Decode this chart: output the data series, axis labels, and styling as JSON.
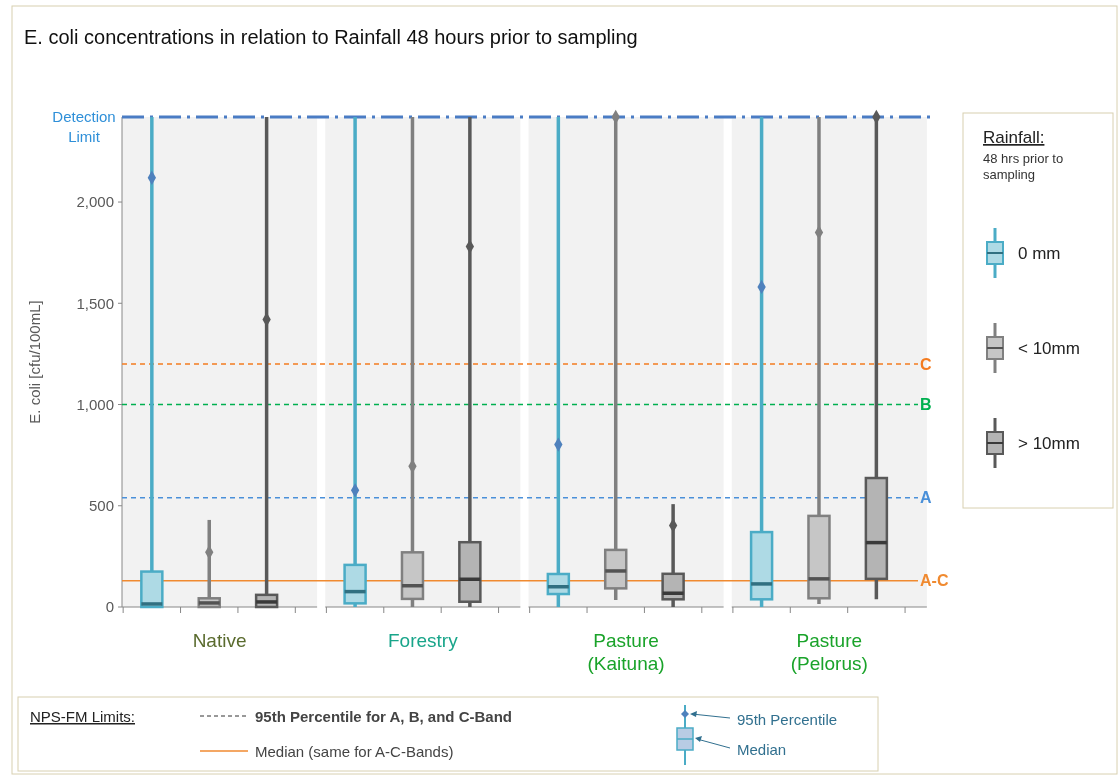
{
  "chart_data": {
    "type": "box",
    "title": "E. coli concentrations in relation to Rainfall 48 hours prior to sampling",
    "ylabel": "E. coli [cfu/100mL]",
    "legend_title": "Rainfall:",
    "legend": "right",
    "categories": [
      "Native",
      "Forestry",
      "Pasture (Kaituna)",
      "Pasture (Pelorus)"
    ],
    "ylim": [
      0,
      2420
    ],
    "yticks": [
      0,
      500,
      {
        "value": 1000,
        "label": "1,000"
      },
      {
        "value": 1500,
        "label": "1,500"
      },
      {
        "value": 2000,
        "label": "2,000"
      }
    ],
    "series": [
      {
        "name": "0 mm",
        "color": "#4bacc6",
        "boxes": [
          {
            "low": 0,
            "q1": 0,
            "median": 15,
            "q3": 175,
            "high": 2420
          },
          {
            "low": 0,
            "q1": 18,
            "median": 76,
            "q3": 208,
            "high": 2420
          },
          {
            "low": 0,
            "q1": 64,
            "median": 100,
            "q3": 163,
            "high": 2420
          },
          {
            "low": 0,
            "q1": 38,
            "median": 114,
            "q3": 370,
            "high": 2420
          }
        ]
      },
      {
        "name": "< 10mm",
        "color": "#808080",
        "boxes": [
          {
            "low": 0,
            "q1": 0,
            "median": 20,
            "q3": 43,
            "high": 430
          },
          {
            "low": 0,
            "q1": 40,
            "median": 105,
            "q3": 270,
            "high": 2420
          },
          {
            "low": 35,
            "q1": 92,
            "median": 178,
            "q3": 282,
            "high": 2420
          },
          {
            "low": 15,
            "q1": 43,
            "median": 139,
            "q3": 450,
            "high": 2420
          }
        ]
      },
      {
        "name": "> 10mm",
        "color": "#595959",
        "boxes": [
          {
            "low": 0,
            "q1": 0,
            "median": 25,
            "q3": 60,
            "high": 2420
          },
          {
            "low": 0,
            "q1": 26,
            "median": 137,
            "q3": 320,
            "high": 2420
          },
          {
            "low": 0,
            "q1": 38,
            "median": 68,
            "q3": 164,
            "high": 508
          },
          {
            "low": 38,
            "q1": 139,
            "median": 318,
            "q3": 637,
            "high": 2420
          }
        ]
      },
      {
        "type": "scatter",
        "color": "#4f81bd",
        "marker": "diamond",
        "x": [
          "Native",
          "Forestry",
          "Pasture (Kaituna)",
          "Pasture (Pelorus)"
        ],
        "values": [
          2120,
          576,
          802,
          1581
        ]
      },
      {
        "type": "scatter",
        "color": "#808080",
        "marker": "diamond",
        "x": [
          "Native",
          "Forestry",
          "Pasture (Kaituna)",
          "Pasture (Pelorus)"
        ],
        "values": [
          270,
          695,
          2420,
          1850
        ]
      },
      {
        "type": "scatter",
        "color": "#595959",
        "marker": "diamond",
        "x": [
          "Native",
          "Forestry",
          "Pasture (Kaituna)",
          "Pasture (Pelorus)"
        ],
        "values": [
          1420,
          1780,
          403,
          2420
        ]
      }
    ],
    "ref_lines": [
      {
        "axis": "y",
        "value": 2420,
        "label": "Detection Limit",
        "color": "#4a7cc4",
        "line_style": "dashed"
      },
      {
        "axis": "y",
        "value": 1200,
        "label": "C",
        "color": "#f47c20",
        "line_style": "dashed"
      },
      {
        "axis": "y",
        "value": 1000,
        "label": "B",
        "color": "#00b050",
        "line_style": "dashed"
      },
      {
        "axis": "y",
        "value": 540,
        "label": "A",
        "color": "#4a90d9",
        "line_style": "dashed"
      },
      {
        "axis": "y",
        "value": 130,
        "label": "A-C",
        "color": "#f08a30",
        "line_style": "solid"
      }
    ],
    "annotations": [
      "48 hrs prior to sampling",
      "NPS-FM Limits:",
      "95th Percentile for A, B, and C-Band",
      "Median (same for A-C-Bands)",
      "95th Percentile",
      "Median"
    ]
  }
}
